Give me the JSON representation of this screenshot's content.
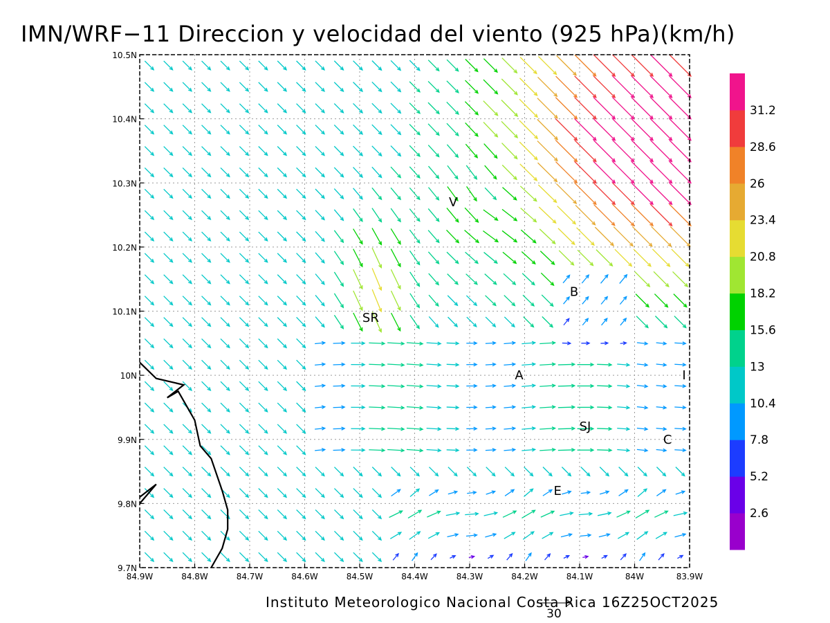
{
  "title": "IMN/WRF−11 Direccion y velocidad del viento (925 hPa)(km/h)",
  "credit": "Instituto Meteorologico Nacional Costa Rica 16Z25OCT2025",
  "reference_vector": {
    "label": "30",
    "value": 30
  },
  "map_extent": {
    "lon": [
      -84.9,
      -83.9
    ],
    "lat": [
      9.7,
      10.5
    ]
  },
  "x_ticks": [
    {
      "label": "84.9W",
      "lon": -84.9
    },
    {
      "label": "84.8W",
      "lon": -84.8
    },
    {
      "label": "84.7W",
      "lon": -84.7
    },
    {
      "label": "84.6W",
      "lon": -84.6
    },
    {
      "label": "84.5W",
      "lon": -84.5
    },
    {
      "label": "84.4W",
      "lon": -84.4
    },
    {
      "label": "84.3W",
      "lon": -84.3
    },
    {
      "label": "84.2W",
      "lon": -84.2
    },
    {
      "label": "84.1W",
      "lon": -84.1
    },
    {
      "label": "84W",
      "lon": -84.0
    },
    {
      "label": "83.9W",
      "lon": -83.9
    }
  ],
  "y_ticks": [
    {
      "label": "10.5N",
      "lat": 10.5
    },
    {
      "label": "10.4N",
      "lat": 10.4
    },
    {
      "label": "10.3N",
      "lat": 10.3
    },
    {
      "label": "10.2N",
      "lat": 10.2
    },
    {
      "label": "10.1N",
      "lat": 10.1
    },
    {
      "label": "10N",
      "lat": 10.0
    },
    {
      "label": "9.9N",
      "lat": 9.9
    },
    {
      "label": "9.8N",
      "lat": 9.8
    },
    {
      "label": "9.7N",
      "lat": 9.7
    }
  ],
  "cities": [
    {
      "label": "V",
      "lon": -84.33,
      "lat": 10.27
    },
    {
      "label": "SR",
      "lon": -84.48,
      "lat": 10.09
    },
    {
      "label": "B",
      "lon": -84.11,
      "lat": 10.13
    },
    {
      "label": "A",
      "lon": -84.21,
      "lat": 10.0
    },
    {
      "label": "SJ",
      "lon": -84.09,
      "lat": 9.92
    },
    {
      "label": "C",
      "lon": -83.94,
      "lat": 9.9
    },
    {
      "label": "E",
      "lon": -84.14,
      "lat": 9.82
    },
    {
      "label": "I",
      "lon": -83.91,
      "lat": 10.0
    }
  ],
  "colorbar": {
    "colors": [
      "#9900cc",
      "#6a00e8",
      "#1c3cff",
      "#0099ff",
      "#00c8c8",
      "#00d28c",
      "#00d200",
      "#a0e632",
      "#e6dc32",
      "#e6aa32",
      "#f08228",
      "#f03c3c",
      "#f0148c"
    ],
    "labels": [
      "2.6",
      "5.2",
      "7.8",
      "10.4",
      "13",
      "15.6",
      "18.2",
      "20.8",
      "23.4",
      "26",
      "28.6",
      "31.2"
    ]
  },
  "coastline": [
    [
      -84.9,
      10.02
    ],
    [
      -84.87,
      9.995
    ],
    [
      -84.82,
      9.985
    ],
    [
      -84.85,
      9.965
    ],
    [
      -84.83,
      9.975
    ],
    [
      -84.8,
      9.93
    ],
    [
      -84.79,
      9.89
    ],
    [
      -84.77,
      9.87
    ],
    [
      -84.75,
      9.82
    ],
    [
      -84.74,
      9.79
    ],
    [
      -84.74,
      9.76
    ],
    [
      -84.75,
      9.73
    ],
    [
      -84.77,
      9.7
    ]
  ],
  "coastline2": [
    [
      -84.9,
      9.81
    ],
    [
      -84.87,
      9.83
    ],
    [
      -84.9,
      9.8
    ]
  ]
}
